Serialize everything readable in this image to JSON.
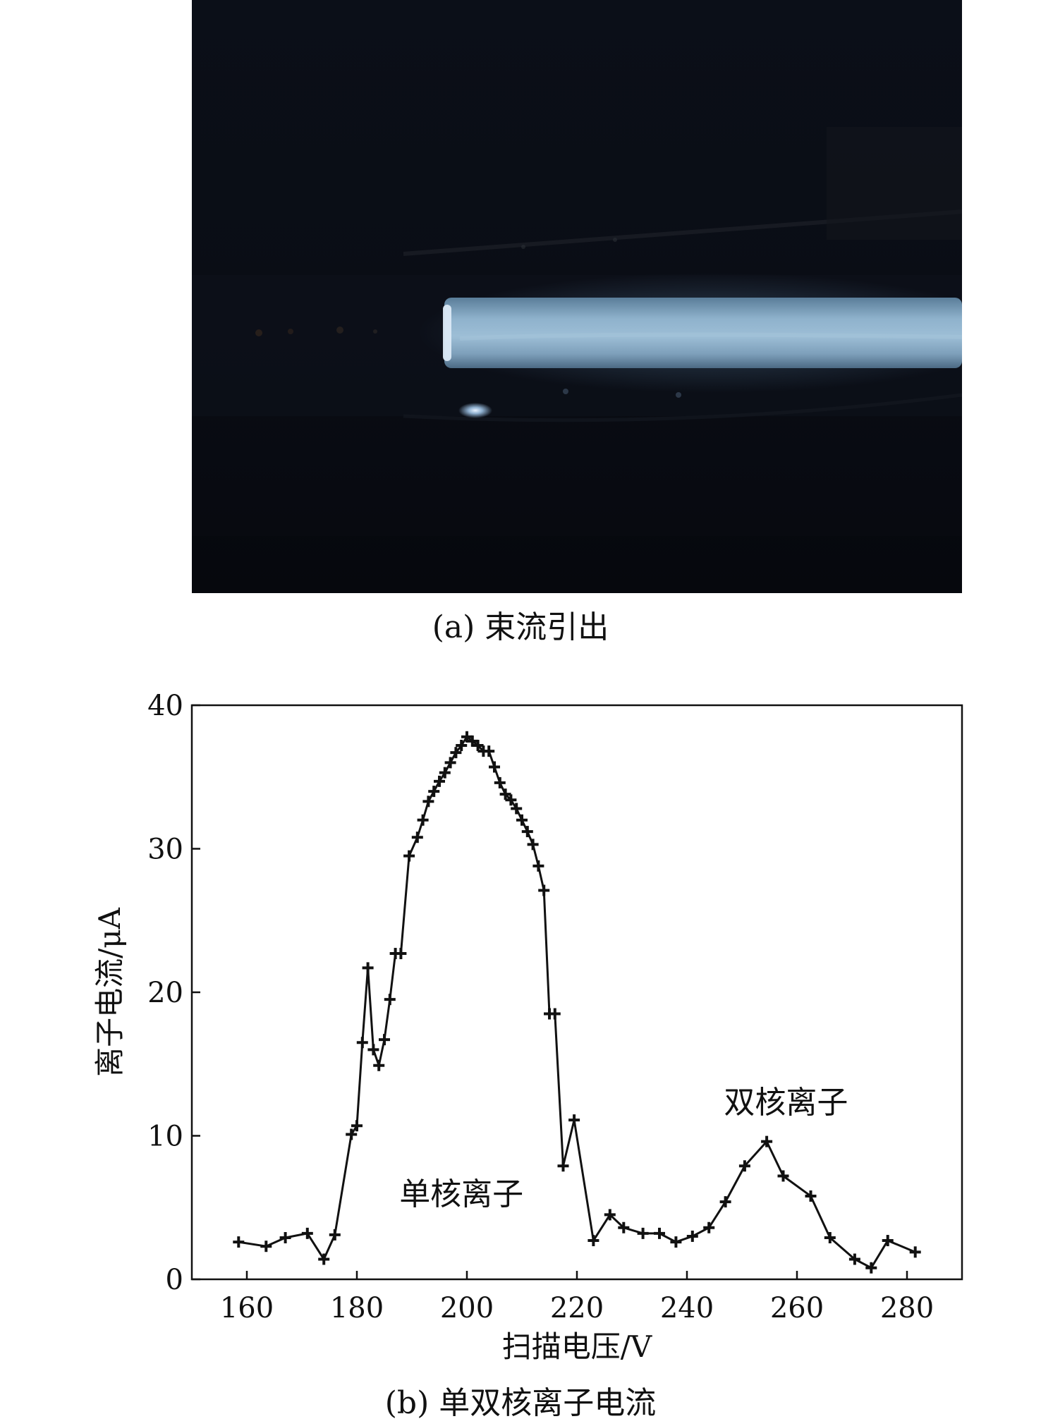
{
  "figure": {
    "caption_a": "(a) 束流引出",
    "caption_b": "(b) 单双核离子电流"
  },
  "chart_data": {
    "type": "line",
    "xlabel": "扫描电压/V",
    "ylabel": "离子电流/μA",
    "xlim": [
      150,
      290
    ],
    "ylim": [
      0,
      40
    ],
    "xticks": [
      160,
      180,
      200,
      220,
      240,
      260,
      280
    ],
    "yticks": [
      0,
      10,
      20,
      30,
      40
    ],
    "grid": false,
    "annotations": [
      {
        "text": "单核离子",
        "x": 199,
        "y": 5.2
      },
      {
        "text": "双核离子",
        "x": 258,
        "y": 11.6
      }
    ],
    "series": [
      {
        "marker": "plus",
        "color": "#111111",
        "x": [
          158.5,
          163.5,
          167,
          171,
          174,
          176,
          179,
          180,
          181,
          182,
          183,
          184,
          185,
          186,
          187,
          188,
          189.5,
          191,
          192,
          193,
          194,
          195,
          196,
          197,
          198,
          199,
          200,
          201,
          202,
          203,
          204,
          205,
          206,
          207,
          208,
          209,
          210,
          211,
          212,
          213,
          214,
          215,
          216,
          217.5,
          219.5,
          223,
          226,
          228.5,
          232,
          235,
          238,
          241,
          244,
          247,
          250.5,
          254.5,
          257.5,
          262.5,
          266,
          270.5,
          273.5,
          276.5,
          281.5
        ],
        "y": [
          2.6,
          2.3,
          2.9,
          3.2,
          1.4,
          3.1,
          10.1,
          10.7,
          16.5,
          21.7,
          16.0,
          14.9,
          16.7,
          19.5,
          22.7,
          22.7,
          29.5,
          30.8,
          32.0,
          33.3,
          34.0,
          34.7,
          35.3,
          36.0,
          36.7,
          37.2,
          37.8,
          37.5,
          37.2,
          36.8,
          36.8,
          35.7,
          34.6,
          33.8,
          33.4,
          32.8,
          32.0,
          31.2,
          30.3,
          28.8,
          27.1,
          18.5,
          18.5,
          7.9,
          11.1,
          2.7,
          4.5,
          3.6,
          3.2,
          3.2,
          2.6,
          3.0,
          3.6,
          5.4,
          7.9,
          9.6,
          7.2,
          5.8,
          2.9,
          1.4,
          0.8,
          2.7,
          1.9
        ]
      }
    ]
  }
}
